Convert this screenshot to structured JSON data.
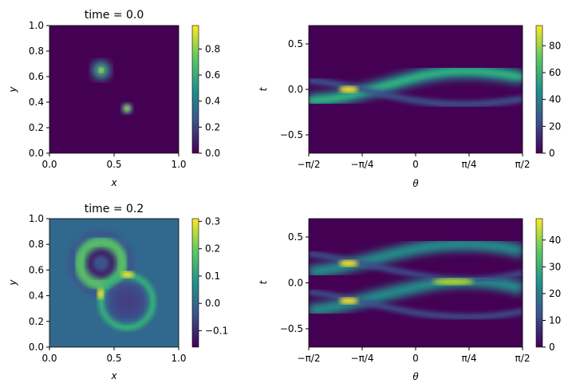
{
  "chart_data": [
    {
      "type": "heatmap",
      "title": "time = 0.0",
      "xlabel": "x",
      "ylabel": "y",
      "xlim": [
        0,
        1
      ],
      "ylim": [
        0,
        1
      ],
      "xticks": [
        "0.0",
        "0.5",
        "1.0"
      ],
      "yticks": [
        "0.0",
        "0.2",
        "0.4",
        "0.6",
        "0.8",
        "1.0"
      ],
      "colormap": "viridis",
      "colorbar": {
        "range": [
          0,
          0.98
        ],
        "ticks": [
          "0.0",
          "0.2",
          "0.4",
          "0.6",
          "0.8"
        ]
      },
      "features": [
        {
          "kind": "gaussian-blob",
          "center": [
            0.4,
            0.65
          ],
          "peak": 0.98
        },
        {
          "kind": "gaussian-blob",
          "center": [
            0.6,
            0.35
          ],
          "peak": 0.9
        }
      ]
    },
    {
      "type": "heatmap",
      "title": "",
      "xlabel": "θ",
      "ylabel": "t",
      "xlim": [
        -1.5708,
        1.5708
      ],
      "ylim": [
        -0.7,
        0.7
      ],
      "xticks": [
        "−π/2",
        "−π/4",
        "0",
        "π/4",
        "π/2"
      ],
      "yticks": [
        "−0.5",
        "0.0",
        "0.5"
      ],
      "colormap": "viridis",
      "colorbar": {
        "range": [
          0,
          95
        ],
        "ticks": [
          "0",
          "20",
          "40",
          "60",
          "80"
        ]
      },
      "features": [
        {
          "kind": "sinusoid-band",
          "label": "wide band",
          "offset": 0.0,
          "amplitude": 0.187,
          "phase": -0.785,
          "peak": 45
        },
        {
          "kind": "sinusoid-band",
          "label": "narrow band",
          "offset": 0.0,
          "amplitude": 0.187,
          "phase": 0.785,
          "peak": 30
        },
        {
          "kind": "hotspot",
          "center": [
            -0.785,
            0.0
          ],
          "peak": 95
        }
      ]
    },
    {
      "type": "heatmap",
      "title": "time = 0.2",
      "xlabel": "x",
      "ylabel": "y",
      "xlim": [
        0,
        1
      ],
      "ylim": [
        0,
        1
      ],
      "xticks": [
        "0.0",
        "0.5",
        "1.0"
      ],
      "yticks": [
        "0.0",
        "0.2",
        "0.4",
        "0.6",
        "0.8",
        "1.0"
      ],
      "colormap": "viridis",
      "colorbar": {
        "range": [
          -0.16,
          0.31
        ],
        "ticks": [
          "−0.1",
          "0.0",
          "0.1",
          "0.2",
          "0.3"
        ]
      },
      "features": [
        {
          "kind": "expanding-ring",
          "center": [
            0.4,
            0.65
          ],
          "radius": 0.2
        },
        {
          "kind": "expanding-ring",
          "center": [
            0.6,
            0.35
          ],
          "radius": 0.2
        }
      ]
    },
    {
      "type": "heatmap",
      "title": "",
      "xlabel": "θ",
      "ylabel": "t",
      "xlim": [
        -1.5708,
        1.5708
      ],
      "ylim": [
        -0.7,
        0.7
      ],
      "xticks": [
        "−π/2",
        "−π/4",
        "0",
        "π/4",
        "π/2"
      ],
      "yticks": [
        "−0.5",
        "0.0",
        "0.5"
      ],
      "colormap": "viridis",
      "colorbar": {
        "range": [
          0,
          48
        ],
        "ticks": [
          "0",
          "10",
          "20",
          "30",
          "40"
        ]
      },
      "features": [
        {
          "kind": "sinusoid-band",
          "label": "wide band upper",
          "offset": 0.2,
          "amplitude": 0.187,
          "phase": -0.785,
          "peak": 22
        },
        {
          "kind": "sinusoid-band",
          "label": "wide band lower",
          "offset": -0.2,
          "amplitude": 0.187,
          "phase": -0.785,
          "peak": 22
        },
        {
          "kind": "sinusoid-band",
          "label": "narrow band upper",
          "offset": 0.2,
          "amplitude": 0.187,
          "phase": 0.785,
          "peak": 15
        },
        {
          "kind": "sinusoid-band",
          "label": "narrow band lower",
          "offset": -0.2,
          "amplitude": 0.187,
          "phase": 0.785,
          "peak": 15
        }
      ]
    }
  ]
}
